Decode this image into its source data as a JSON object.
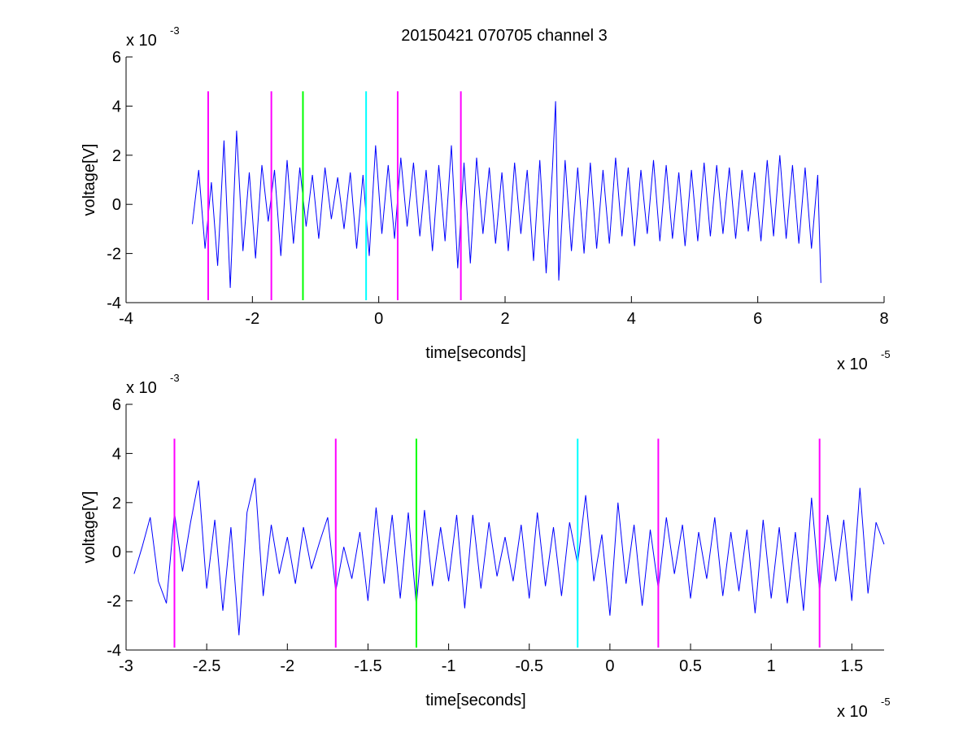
{
  "figure": {
    "title": "20150421 070705 channel 3"
  },
  "chart_data": [
    {
      "type": "line",
      "title": "20150421 070705 channel 3",
      "xlabel": "time[seconds]",
      "ylabel": "voltage[V]",
      "x_exponent": "x 10",
      "x_exponent_power": "-5",
      "y_exponent": "x 10",
      "y_exponent_power": "-3",
      "xlim": [
        -4,
        8
      ],
      "ylim": [
        -4,
        6
      ],
      "xticks": [
        -4,
        -2,
        0,
        2,
        4,
        6,
        8
      ],
      "xtick_labels": [
        "-4",
        "-2",
        "0",
        "2",
        "4",
        "6",
        "8"
      ],
      "yticks": [
        -4,
        -2,
        0,
        2,
        4,
        6
      ],
      "ytick_labels": [
        "-4",
        "-2",
        "0",
        "2",
        "4",
        "6"
      ],
      "grid": false,
      "series": [
        {
          "color": "#0000ff",
          "x": [
            -2.95,
            -2.85,
            -2.75,
            -2.65,
            -2.55,
            -2.45,
            -2.35,
            -2.25,
            -2.15,
            -2.05,
            -1.95,
            -1.85,
            -1.75,
            -1.65,
            -1.55,
            -1.45,
            -1.35,
            -1.25,
            -1.15,
            -1.05,
            -0.95,
            -0.85,
            -0.75,
            -0.65,
            -0.55,
            -0.45,
            -0.35,
            -0.25,
            -0.15,
            -0.05,
            0.05,
            0.15,
            0.25,
            0.35,
            0.45,
            0.55,
            0.65,
            0.75,
            0.85,
            0.95,
            1.05,
            1.15,
            1.25,
            1.35,
            1.45,
            1.55,
            1.65,
            1.75,
            1.85,
            1.95,
            2.05,
            2.15,
            2.25,
            2.35,
            2.45,
            2.55,
            2.65,
            2.75,
            2.8,
            2.85,
            2.95,
            3.05,
            3.15,
            3.25,
            3.35,
            3.45,
            3.55,
            3.65,
            3.75,
            3.85,
            3.95,
            4.05,
            4.15,
            4.25,
            4.35,
            4.45,
            4.55,
            4.65,
            4.75,
            4.85,
            4.95,
            5.05,
            5.15,
            5.25,
            5.35,
            5.45,
            5.55,
            5.65,
            5.75,
            5.85,
            5.95,
            6.05,
            6.15,
            6.25,
            6.35,
            6.45,
            6.55,
            6.65,
            6.75,
            6.85,
            6.95,
            7.0
          ],
          "y": [
            -0.8,
            1.4,
            -1.8,
            0.9,
            -2.5,
            2.6,
            -3.4,
            3.0,
            -1.9,
            1.3,
            -2.2,
            1.6,
            -0.7,
            1.4,
            -2.1,
            1.8,
            -1.6,
            1.5,
            -0.9,
            1.2,
            -1.4,
            1.5,
            -0.6,
            1.1,
            -1.0,
            1.3,
            -1.8,
            1.2,
            -2.1,
            2.4,
            -1.2,
            1.6,
            -1.4,
            1.9,
            -0.9,
            1.7,
            -1.3,
            1.4,
            -1.9,
            1.6,
            -1.5,
            2.4,
            -2.6,
            1.7,
            -2.4,
            1.9,
            -1.2,
            1.5,
            -1.6,
            1.3,
            -1.9,
            1.7,
            -1.2,
            1.4,
            -2.3,
            1.8,
            -2.8,
            1.5,
            4.2,
            -3.1,
            1.8,
            -1.9,
            1.5,
            -2.0,
            1.7,
            -1.8,
            1.4,
            -1.6,
            1.9,
            -1.3,
            1.5,
            -1.7,
            1.4,
            -1.2,
            1.8,
            -1.5,
            1.6,
            -1.4,
            1.3,
            -1.7,
            1.4,
            -1.5,
            1.7,
            -1.3,
            1.6,
            -1.2,
            1.5,
            -1.4,
            1.4,
            -1.1,
            1.3,
            -1.5,
            1.8,
            -1.3,
            2.0,
            -1.4,
            1.6,
            -1.6,
            1.5,
            -1.8,
            1.2,
            -3.2
          ]
        }
      ],
      "vertical_lines": [
        {
          "x": -2.7,
          "color": "#ff00ff"
        },
        {
          "x": -1.7,
          "color": "#ff00ff"
        },
        {
          "x": -1.2,
          "color": "#00ff00"
        },
        {
          "x": -0.2,
          "color": "#00ffff"
        },
        {
          "x": 0.3,
          "color": "#ff00ff"
        },
        {
          "x": 1.3,
          "color": "#ff00ff"
        }
      ],
      "vline_range": [
        -3.9,
        4.6
      ]
    },
    {
      "type": "line",
      "title": "",
      "xlabel": "time[seconds]",
      "ylabel": "voltage[V]",
      "x_exponent": "x 10",
      "x_exponent_power": "-5",
      "y_exponent": "x 10",
      "y_exponent_power": "-3",
      "xlim": [
        -3.0,
        1.7
      ],
      "ylim": [
        -4,
        6
      ],
      "xticks": [
        -3,
        -2.5,
        -2,
        -1.5,
        -1,
        -0.5,
        0,
        0.5,
        1,
        1.5
      ],
      "xtick_labels": [
        "-3",
        "-2.5",
        "-2",
        "-1.5",
        "-1",
        "-0.5",
        "0",
        "0.5",
        "1",
        "1.5"
      ],
      "yticks": [
        -4,
        -2,
        0,
        2,
        4,
        6
      ],
      "ytick_labels": [
        "-4",
        "-2",
        "0",
        "2",
        "4",
        "6"
      ],
      "grid": false,
      "series": [
        {
          "color": "#0000ff",
          "x": [
            -2.95,
            -2.9,
            -2.85,
            -2.8,
            -2.75,
            -2.7,
            -2.65,
            -2.6,
            -2.55,
            -2.5,
            -2.45,
            -2.4,
            -2.35,
            -2.3,
            -2.25,
            -2.2,
            -2.15,
            -2.1,
            -2.05,
            -2.0,
            -1.95,
            -1.9,
            -1.85,
            -1.8,
            -1.75,
            -1.7,
            -1.65,
            -1.6,
            -1.55,
            -1.5,
            -1.45,
            -1.4,
            -1.35,
            -1.3,
            -1.25,
            -1.2,
            -1.15,
            -1.1,
            -1.05,
            -1.0,
            -0.95,
            -0.9,
            -0.85,
            -0.8,
            -0.75,
            -0.7,
            -0.65,
            -0.6,
            -0.55,
            -0.5,
            -0.45,
            -0.4,
            -0.35,
            -0.3,
            -0.25,
            -0.2,
            -0.15,
            -0.1,
            -0.05,
            0.0,
            0.05,
            0.1,
            0.15,
            0.2,
            0.25,
            0.3,
            0.35,
            0.4,
            0.45,
            0.5,
            0.55,
            0.6,
            0.65,
            0.7,
            0.75,
            0.8,
            0.85,
            0.9,
            0.95,
            1.0,
            1.05,
            1.1,
            1.15,
            1.2,
            1.25,
            1.3,
            1.35,
            1.4,
            1.45,
            1.5,
            1.55,
            1.6,
            1.65,
            1.7
          ],
          "y": [
            -0.9,
            0.2,
            1.4,
            -1.2,
            -2.1,
            1.6,
            -0.8,
            1.2,
            2.9,
            -1.5,
            1.3,
            -2.4,
            1.0,
            -3.4,
            1.6,
            3.0,
            -1.8,
            1.1,
            -0.9,
            0.6,
            -1.3,
            1.0,
            -0.7,
            0.4,
            1.4,
            -1.6,
            0.2,
            -1.1,
            0.8,
            -2.0,
            1.8,
            -1.3,
            1.5,
            -1.9,
            1.6,
            -2.2,
            1.7,
            -1.4,
            1.0,
            -1.2,
            1.5,
            -2.3,
            1.5,
            -1.5,
            1.2,
            -1.0,
            0.6,
            -1.2,
            1.1,
            -1.9,
            1.6,
            -1.4,
            1.0,
            -1.8,
            1.2,
            -0.5,
            2.3,
            -1.2,
            0.7,
            -2.6,
            2.0,
            -1.3,
            1.1,
            -2.2,
            0.9,
            -1.5,
            1.4,
            -0.9,
            1.1,
            -1.9,
            0.8,
            -1.1,
            1.4,
            -1.8,
            0.8,
            -1.6,
            0.9,
            -2.5,
            1.3,
            -1.9,
            1.0,
            -2.1,
            0.8,
            -2.4,
            2.2,
            -1.6,
            1.5,
            -1.2,
            1.3,
            -2.0,
            2.6,
            -1.7,
            1.2,
            0.3
          ]
        }
      ],
      "vertical_lines": [
        {
          "x": -2.7,
          "color": "#ff00ff"
        },
        {
          "x": -1.7,
          "color": "#ff00ff"
        },
        {
          "x": -1.2,
          "color": "#00ff00"
        },
        {
          "x": -0.2,
          "color": "#00ffff"
        },
        {
          "x": 0.3,
          "color": "#ff00ff"
        },
        {
          "x": 1.3,
          "color": "#ff00ff"
        }
      ],
      "vline_range": [
        -3.9,
        4.6
      ]
    }
  ]
}
